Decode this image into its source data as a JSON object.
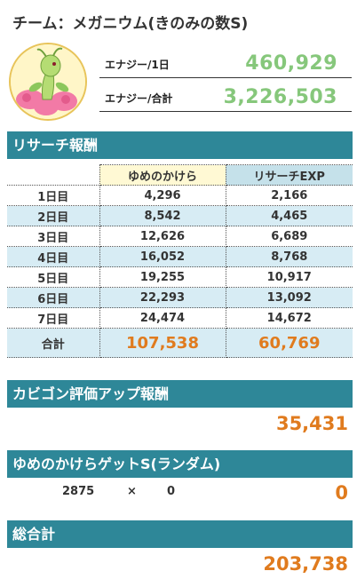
{
  "title": "チーム：メガニウム(きのみの数S)",
  "energy": {
    "daily_label": "エナジー/1日",
    "daily_value": "460,929",
    "total_label": "エナジー/合計",
    "total_value": "3,226,503"
  },
  "research": {
    "header": "リサーチ報酬",
    "columns": [
      "",
      "ゆめのかけら",
      "リサーチEXP"
    ],
    "rows": [
      {
        "day": "1日目",
        "shards": "4,296",
        "exp": "2,166"
      },
      {
        "day": "2日目",
        "shards": "8,542",
        "exp": "4,465"
      },
      {
        "day": "3日目",
        "shards": "12,626",
        "exp": "6,689"
      },
      {
        "day": "4日目",
        "shards": "16,052",
        "exp": "8,768"
      },
      {
        "day": "5日目",
        "shards": "19,255",
        "exp": "10,917"
      },
      {
        "day": "6日目",
        "shards": "22,293",
        "exp": "13,092"
      },
      {
        "day": "7日目",
        "shards": "24,474",
        "exp": "14,672"
      }
    ],
    "total": {
      "label": "合計",
      "shards": "107,538",
      "exp": "60,769"
    }
  },
  "snorlax_bonus": {
    "header": "カビゴン評価アップ報酬",
    "value": "35,431"
  },
  "shard_get": {
    "header": "ゆめのかけらゲットS(ランダム)",
    "base": "2875",
    "times_symbol": "×",
    "count": "0",
    "result": "0"
  },
  "grand_total": {
    "header": "総合計",
    "value": "203,738"
  },
  "colors": {
    "header_bg": "#2e8798",
    "energy_green": "#86c77b",
    "total_orange": "#e07b1e",
    "shard_col": "#fff9d4",
    "exp_col": "#c5e1ea",
    "alt_row": "#d7ecf4"
  },
  "icons": {
    "avatar": "meganium-sprite"
  }
}
